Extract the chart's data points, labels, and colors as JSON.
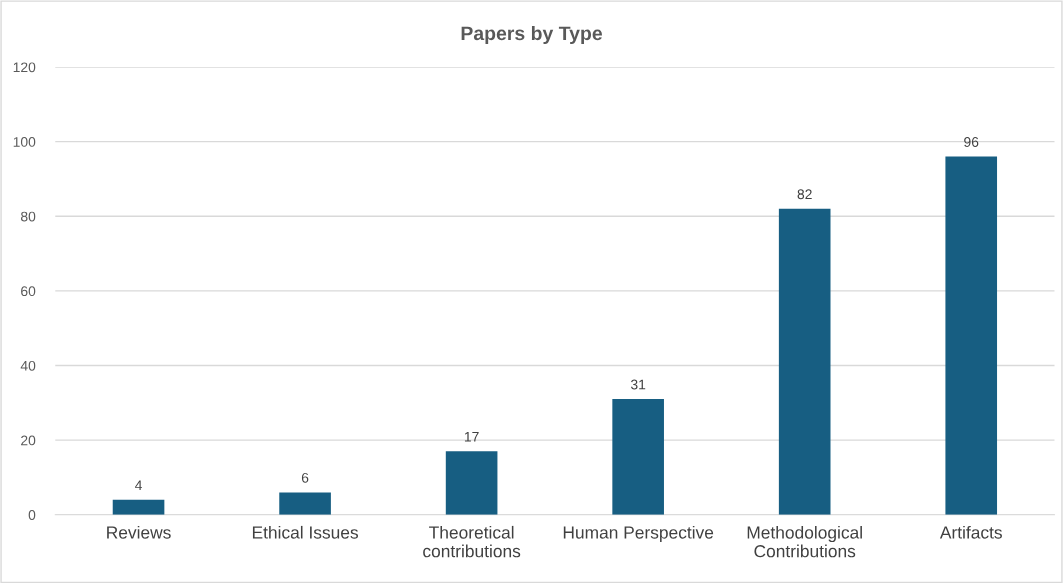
{
  "chart_data": {
    "type": "bar",
    "title": "Papers by Type",
    "categories": [
      "Reviews",
      "Ethical Issues",
      "Theoretical\ncontributions",
      "Human Perspective",
      "Methodological\nContributions",
      "Artifacts"
    ],
    "values": [
      4,
      6,
      17,
      31,
      82,
      96
    ],
    "color": "#175e82",
    "ylim": [
      0,
      120
    ],
    "yticks": [
      0,
      20,
      40,
      60,
      80,
      100,
      120
    ],
    "grid": "y",
    "data_labels": true
  }
}
